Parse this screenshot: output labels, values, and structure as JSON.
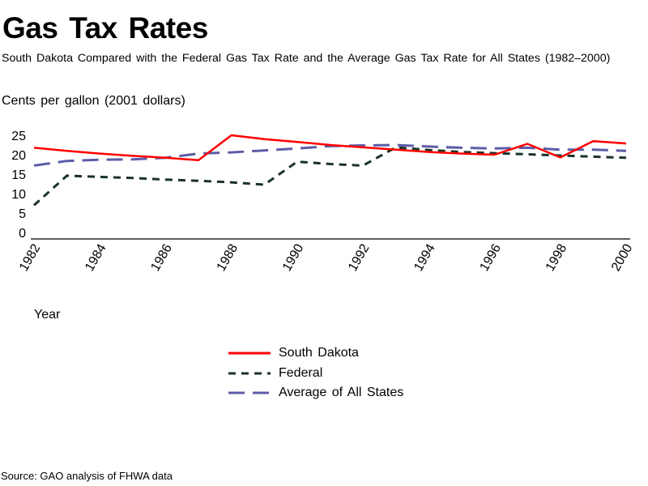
{
  "chart_data": {
    "type": "line",
    "title": "Gas Tax Rates",
    "subtitle": "South Dakota Compared with the Federal Gas Tax Rate and the Average Gas Tax Rate for All States (1982–2000)",
    "ylabel": "Cents per gallon (2001 dollars)",
    "xlabel": "Year",
    "x": [
      1982,
      1983,
      1984,
      1985,
      1986,
      1987,
      1988,
      1989,
      1990,
      1991,
      1992,
      1993,
      1994,
      1995,
      1996,
      1997,
      1998,
      1999,
      2000
    ],
    "x_ticks": [
      "1982",
      "1984",
      "1986",
      "1988",
      "1990",
      "1992",
      "1994",
      "1996",
      "1998",
      "2000"
    ],
    "y_ticks": [
      "0",
      "5",
      "10",
      "15",
      "20",
      "25"
    ],
    "ylim": [
      0,
      25
    ],
    "xlim": [
      1982,
      2000
    ],
    "grid": false,
    "legend_position": "bottom-center",
    "series": [
      {
        "name": "South Dakota",
        "color": "#ff0000",
        "style": "solid",
        "values": [
          21.8,
          21.0,
          20.3,
          19.7,
          19.2,
          18.6,
          25.0,
          24.0,
          23.3,
          22.5,
          21.9,
          21.3,
          20.7,
          20.3,
          20.0,
          22.8,
          19.3,
          23.5,
          22.9
        ]
      },
      {
        "name": "Federal",
        "color": "#1a3326",
        "style": "dashed",
        "values": [
          7.0,
          14.6,
          14.3,
          14.0,
          13.6,
          13.3,
          12.9,
          12.3,
          18.2,
          17.6,
          17.2,
          21.9,
          21.2,
          20.7,
          20.4,
          20.1,
          19.8,
          19.5,
          19.2
        ]
      },
      {
        "name": "Average of All States",
        "color": "#5c5ca8",
        "style": "long-dashed",
        "values": [
          17.2,
          18.4,
          18.7,
          18.8,
          19.2,
          20.3,
          20.6,
          21.1,
          21.6,
          22.2,
          22.4,
          22.5,
          22.1,
          21.8,
          21.6,
          21.8,
          21.3,
          21.3,
          21.0
        ]
      }
    ]
  },
  "source": "Source: GAO analysis of FHWA data"
}
